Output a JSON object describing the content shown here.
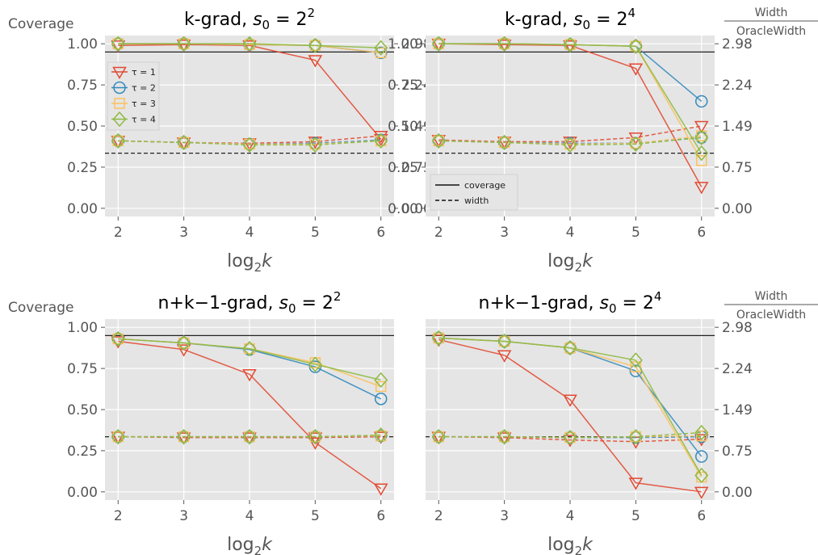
{
  "colors": {
    "tau1": "#E24A33",
    "tau2": "#348ABD",
    "tau3": "#FBC15E",
    "tau4": "#8EBA42",
    "panel_bg": "#E5E5E5",
    "grid": "#FFFFFF",
    "reference_line": "#222222"
  },
  "left_axis_label": "Coverage",
  "right_axis_label": {
    "numerator": "Width",
    "denominator": "OracleWidth"
  },
  "chart_data": [
    {
      "type": "line",
      "title": "k-grad, s0 = 2^2",
      "title_text": "k-grad, ",
      "title_var": "s",
      "title_sub": "0",
      "title_eq": " = 2",
      "title_sup": "2",
      "xlabel": "log2k",
      "x": [
        2,
        3,
        4,
        5,
        6
      ],
      "ylim": [
        -0.05,
        1.05
      ],
      "y_ticks": [
        "0.00",
        "0.25",
        "0.50",
        "0.75",
        "1.00"
      ],
      "right_ticks": [
        "0.00",
        "0.75",
        "1.49",
        "2.24",
        "2.98"
      ],
      "coverage_reference": 0.95,
      "width_reference": 0.335,
      "legend": {
        "type": "tau",
        "placement": "upper-left",
        "entries": [
          "τ = 1",
          "τ = 2",
          "τ = 3",
          "τ = 4"
        ]
      },
      "series": [
        {
          "name": "τ = 1",
          "marker": "triangle-down",
          "coverage": [
            0.99,
            0.995,
            0.99,
            0.9,
            0.42
          ],
          "width": [
            0.41,
            0.4,
            0.395,
            0.405,
            0.44
          ]
        },
        {
          "name": "τ = 2",
          "marker": "circle",
          "coverage": [
            1.0,
            1.0,
            0.995,
            0.99,
            0.945
          ],
          "width": [
            0.41,
            0.4,
            0.39,
            0.395,
            0.415
          ]
        },
        {
          "name": "τ = 3",
          "marker": "square",
          "coverage": [
            1.0,
            1.0,
            0.995,
            0.99,
            0.945
          ],
          "width": [
            0.41,
            0.4,
            0.39,
            0.39,
            0.41
          ]
        },
        {
          "name": "τ = 4",
          "marker": "diamond",
          "coverage": [
            1.0,
            1.0,
            1.0,
            0.99,
            0.975
          ],
          "width": [
            0.41,
            0.4,
            0.385,
            0.385,
            0.41
          ]
        }
      ]
    },
    {
      "type": "line",
      "title": "k-grad, s0 = 2^4",
      "title_text": "k-grad, ",
      "title_var": "s",
      "title_sub": "0",
      "title_eq": " = 2",
      "title_sup": "4",
      "xlabel": "log2k",
      "x": [
        2,
        3,
        4,
        5,
        6
      ],
      "ylim": [
        -0.05,
        1.05
      ],
      "y_ticks": [
        "0.00",
        "0.25",
        "0.50",
        "0.75",
        "1.00"
      ],
      "right_ticks": [
        "0.00",
        "0.75",
        "1.49",
        "2.24",
        "2.98"
      ],
      "coverage_reference": 0.95,
      "width_reference": 0.335,
      "legend": {
        "type": "lines",
        "placement": "lower-left",
        "entries": [
          "coverage",
          "width"
        ]
      },
      "series": [
        {
          "name": "τ = 1",
          "marker": "triangle-down",
          "coverage": [
            1.0,
            0.995,
            0.99,
            0.85,
            0.13
          ],
          "width": [
            0.415,
            0.405,
            0.405,
            0.43,
            0.5
          ]
        },
        {
          "name": "τ = 2",
          "marker": "circle",
          "coverage": [
            1.0,
            1.0,
            0.995,
            0.985,
            0.65
          ],
          "width": [
            0.41,
            0.4,
            0.395,
            0.395,
            0.43
          ]
        },
        {
          "name": "τ = 3",
          "marker": "square",
          "coverage": [
            1.0,
            1.0,
            0.995,
            0.985,
            0.29
          ],
          "width": [
            0.41,
            0.4,
            0.39,
            0.395,
            0.44
          ]
        },
        {
          "name": "τ = 4",
          "marker": "diamond",
          "coverage": [
            1.0,
            1.0,
            0.995,
            0.985,
            0.335
          ],
          "width": [
            0.41,
            0.4,
            0.385,
            0.39,
            0.43
          ]
        }
      ]
    },
    {
      "type": "line",
      "title": "n+k−1-grad, s0 = 2^2",
      "title_text": "n+k−1-grad, ",
      "title_var": "s",
      "title_sub": "0",
      "title_eq": " = 2",
      "title_sup": "2",
      "xlabel": "log2k",
      "x": [
        2,
        3,
        4,
        5,
        6
      ],
      "ylim": [
        -0.05,
        1.05
      ],
      "y_ticks": [
        "0.00",
        "0.25",
        "0.50",
        "0.75",
        "1.00"
      ],
      "right_ticks": [],
      "coverage_reference": 0.95,
      "width_reference": 0.335,
      "series": [
        {
          "name": "τ = 1",
          "marker": "triangle-down",
          "coverage": [
            0.915,
            0.865,
            0.715,
            0.3,
            0.02
          ],
          "width": [
            0.335,
            0.33,
            0.33,
            0.33,
            0.335
          ]
        },
        {
          "name": "τ = 2",
          "marker": "circle",
          "coverage": [
            0.93,
            0.905,
            0.865,
            0.76,
            0.565
          ],
          "width": [
            0.335,
            0.335,
            0.335,
            0.335,
            0.34
          ]
        },
        {
          "name": "τ = 3",
          "marker": "square",
          "coverage": [
            0.93,
            0.905,
            0.87,
            0.785,
            0.64
          ],
          "width": [
            0.335,
            0.335,
            0.335,
            0.335,
            0.34
          ]
        },
        {
          "name": "τ = 4",
          "marker": "diamond",
          "coverage": [
            0.93,
            0.905,
            0.87,
            0.775,
            0.68
          ],
          "width": [
            0.335,
            0.335,
            0.335,
            0.335,
            0.345
          ]
        }
      ]
    },
    {
      "type": "line",
      "title": "n+k−1-grad, s0 = 2^4",
      "title_text": "n+k−1-grad, ",
      "title_var": "s",
      "title_sub": "0",
      "title_eq": " = 2",
      "title_sup": "4",
      "xlabel": "log2k",
      "x": [
        2,
        3,
        4,
        5,
        6
      ],
      "ylim": [
        -0.05,
        1.05
      ],
      "y_ticks": [],
      "right_ticks": [
        "0.00",
        "0.75",
        "1.49",
        "2.24",
        "2.98"
      ],
      "coverage_reference": 0.95,
      "width_reference": 0.335,
      "series": [
        {
          "name": "τ = 1",
          "marker": "triangle-down",
          "coverage": [
            0.925,
            0.83,
            0.56,
            0.055,
            0.0
          ],
          "width": [
            0.335,
            0.33,
            0.315,
            0.305,
            0.32
          ]
        },
        {
          "name": "τ = 2",
          "marker": "circle",
          "coverage": [
            0.935,
            0.915,
            0.875,
            0.735,
            0.215
          ],
          "width": [
            0.335,
            0.335,
            0.33,
            0.33,
            0.335
          ]
        },
        {
          "name": "τ = 3",
          "marker": "square",
          "coverage": [
            0.935,
            0.915,
            0.875,
            0.76,
            0.09
          ],
          "width": [
            0.335,
            0.335,
            0.33,
            0.335,
            0.34
          ]
        },
        {
          "name": "τ = 4",
          "marker": "diamond",
          "coverage": [
            0.935,
            0.915,
            0.875,
            0.8,
            0.1
          ],
          "width": [
            0.335,
            0.335,
            0.33,
            0.335,
            0.36
          ]
        }
      ]
    }
  ]
}
